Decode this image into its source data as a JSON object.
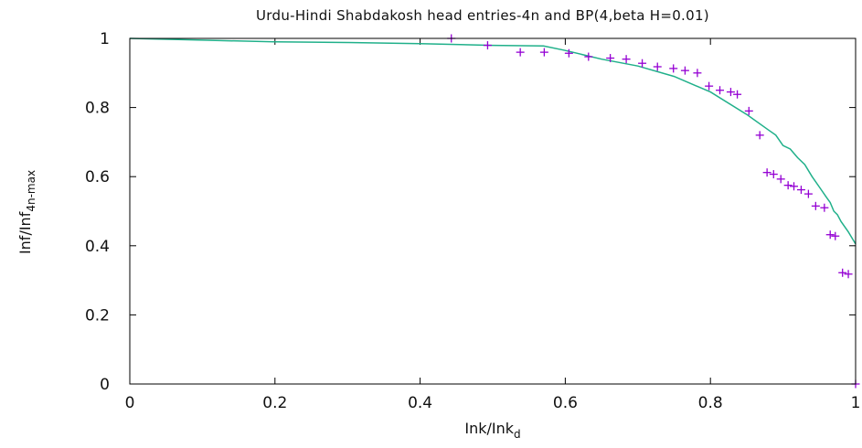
{
  "chart_data": {
    "type": "scatter",
    "title": "Urdu-Hindi Shabdakosh head entries-4n and BP(4,beta H=0.01)",
    "xlabel": "Ink/Ink",
    "xlabel_sub": "d",
    "ylabel": "Inf/Inf",
    "ylabel_sub": "4n-max",
    "xlim": [
      0,
      1
    ],
    "ylim": [
      0,
      1
    ],
    "xticks": [
      "0",
      "0.2",
      "0.4",
      "0.6",
      "0.8",
      "1"
    ],
    "yticks": [
      "0",
      "0.2",
      "0.4",
      "0.6",
      "0.8",
      "1"
    ],
    "grid": false,
    "series": [
      {
        "kind": "points",
        "marker": "+",
        "color": "#9400d3",
        "x": [
          0.443,
          0.493,
          0.538,
          0.571,
          0.605,
          0.632,
          0.662,
          0.684,
          0.706,
          0.727,
          0.749,
          0.765,
          0.782,
          0.798,
          0.813,
          0.828,
          0.837,
          0.853,
          0.868,
          0.878,
          0.887,
          0.897,
          0.907,
          0.915,
          0.925,
          0.935,
          0.945,
          0.957,
          0.965,
          0.972,
          0.982,
          0.99,
          1.0
        ],
        "y": [
          1.0,
          0.98,
          0.96,
          0.96,
          0.957,
          0.947,
          0.943,
          0.94,
          0.928,
          0.918,
          0.913,
          0.907,
          0.9,
          0.862,
          0.85,
          0.845,
          0.838,
          0.79,
          0.72,
          0.612,
          0.607,
          0.593,
          0.575,
          0.572,
          0.562,
          0.55,
          0.515,
          0.51,
          0.432,
          0.428,
          0.322,
          0.318,
          0.0
        ]
      },
      {
        "kind": "line",
        "color": "#20b08a",
        "x": [
          0.0,
          0.1,
          0.2,
          0.3,
          0.4,
          0.5,
          0.57,
          0.6,
          0.65,
          0.7,
          0.75,
          0.8,
          0.85,
          0.88,
          0.89,
          0.9,
          0.91,
          0.92,
          0.93,
          0.94,
          0.95,
          0.96,
          0.965,
          0.97,
          0.975,
          0.98,
          0.99,
          1.0
        ],
        "y": [
          1.0,
          0.995,
          0.99,
          0.988,
          0.985,
          0.98,
          0.978,
          0.965,
          0.94,
          0.92,
          0.89,
          0.845,
          0.78,
          0.735,
          0.72,
          0.69,
          0.68,
          0.655,
          0.635,
          0.6,
          0.57,
          0.54,
          0.525,
          0.5,
          0.49,
          0.47,
          0.44,
          0.405
        ]
      }
    ]
  }
}
